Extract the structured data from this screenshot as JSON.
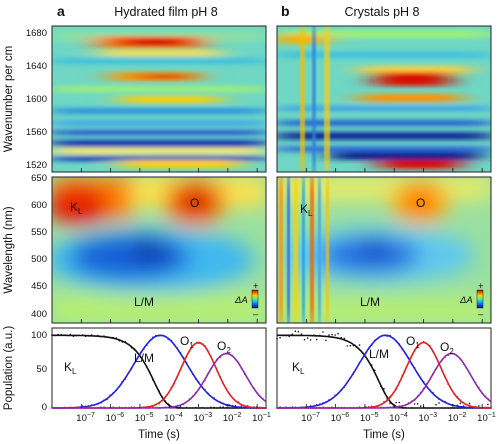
{
  "chart_data": {
    "type": "heatmap",
    "panel_labels": [
      "a",
      "b"
    ],
    "column_titles": [
      "Hydrated film pH 8",
      "Crystals pH 8"
    ],
    "ir_panel": {
      "ylabel": "Wavenumber per cm",
      "yticks": [
        1680,
        1640,
        1600,
        1560,
        1520
      ],
      "ylim": [
        1512,
        1690
      ]
    },
    "vis_panel": {
      "ylabel": "Wavelength (nm)",
      "yticks": [
        650,
        600,
        550,
        500,
        450,
        400
      ],
      "ylim": [
        382,
        652
      ],
      "annotations": {
        "film": [
          "K",
          "L",
          "O",
          "L/M"
        ],
        "crystal": [
          "K",
          "L",
          "O",
          "L/M"
        ]
      },
      "colorbar": {
        "label": "ΔA",
        "plus": "+",
        "minus": "–"
      }
    },
    "population_panel": {
      "type": "line",
      "ylabel": "Population (a.u.)",
      "yticks": [
        100,
        50,
        0
      ],
      "ylim": [
        0,
        110
      ],
      "xlabel": "Time (s)",
      "x_scale": "log",
      "xlim": [
        1e-08,
        0.2
      ],
      "xtick_labels": [
        "10",
        "−7",
        "10",
        "−6",
        "10",
        "−5",
        "10",
        "−4",
        "10",
        "−3",
        "10",
        "−2",
        "10",
        "−1"
      ],
      "xticks": [
        1e-07,
        1e-06,
        1e-05,
        0.0001,
        0.001,
        0.01,
        0.1
      ],
      "series": [
        {
          "name": "K",
          "sub": "L",
          "color": "#111111",
          "peak_time": 1e-08,
          "peak": 100,
          "decay_tau": 3e-05
        },
        {
          "name": "L/M",
          "sub": "",
          "color": "#1f1fe6",
          "peak_time": 5e-05,
          "peak": 100,
          "width_decades": 0.9
        },
        {
          "name": "O",
          "sub": "1",
          "color": "#e61f1f",
          "peak_time": 0.001,
          "peak": 90,
          "width_decades": 0.6
        },
        {
          "name": "O",
          "sub": "2",
          "color": "#8a2aa8",
          "peak_time": 0.009,
          "peak": 75,
          "width_decades": 0.65
        }
      ]
    }
  }
}
